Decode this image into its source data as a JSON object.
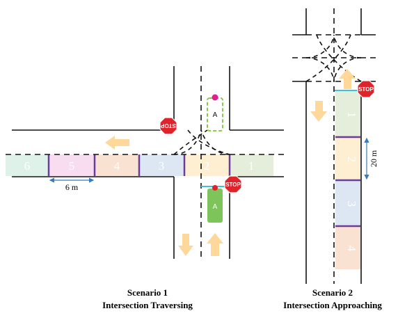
{
  "scenario1": {
    "zones": [
      "6",
      "5",
      "4",
      "3",
      "2",
      "1"
    ],
    "zone_colors": [
      "#dff2ea",
      "#f8dcef",
      "#fae2d3",
      "#dde6f3",
      "#feefd3",
      "#e4eedb"
    ],
    "zone_width_label": "6 m",
    "stop_label": "STOP",
    "vehicle_label": "A",
    "ghost_vehicle_label": "A",
    "caption_line1": "Scenario 1",
    "caption_line2": "Intersection Traversing"
  },
  "scenario2": {
    "zones": [
      "1",
      "2",
      "3",
      "4"
    ],
    "zone_colors": [
      "#e4eedb",
      "#feefd3",
      "#dde6f3",
      "#fae2d3"
    ],
    "zone_length_label": "20 m",
    "stop_label": "STOP",
    "caption_line1": "Scenario 2",
    "caption_line2": "Intersection Approaching"
  },
  "colors": {
    "arrow": "#fdd89a",
    "divider": "#6a3d9a",
    "vehicle": "#7dc55a",
    "ghost_vehicle": "#8cc84b",
    "stop_sign": "#e0232b",
    "dimension": "#3a7ab8",
    "stop_line": "#3ec1d8",
    "marker": "#e02090"
  }
}
